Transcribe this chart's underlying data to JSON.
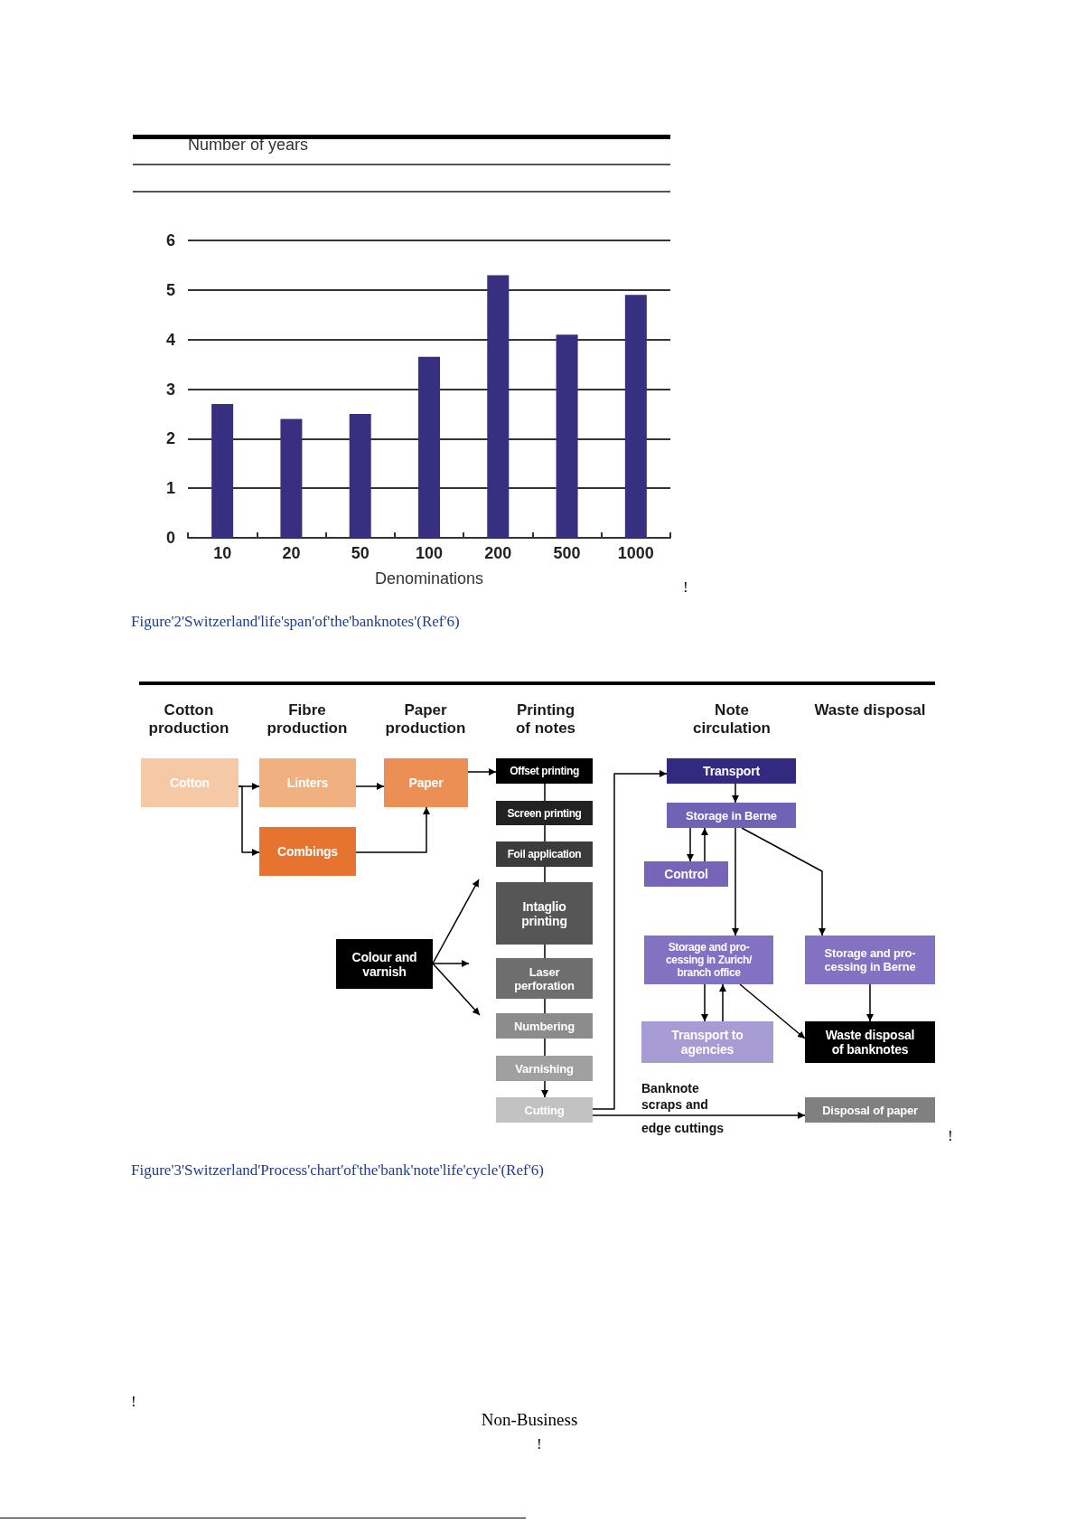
{
  "chart_data": [
    {
      "type": "bar",
      "ylabel": "Number of years",
      "xlabel": "Denominations",
      "categories": [
        "10",
        "20",
        "50",
        "100",
        "200",
        "500",
        "1000"
      ],
      "values": [
        2.7,
        2.4,
        2.5,
        3.65,
        5.3,
        4.1,
        4.9
      ],
      "color": "#372f7f",
      "ylim": [
        0,
        6
      ],
      "yticks": [
        0,
        1,
        2,
        3,
        4,
        5,
        6
      ],
      "grid": "y",
      "annotations": [
        "Figure'2'Switzerland'life'span'of'the'banknotes'(Ref'6)",
        "!"
      ]
    },
    {
      "type": "other",
      "categories": [
        "Cotton\nproduction",
        "Fibre\nproduction",
        "Paper\nproduction",
        "Printing\nof notes",
        "Note\ncirculation",
        "Waste disposal"
      ],
      "annotations": [
        "Cotton",
        "Linters",
        "Paper",
        "Combings",
        "Offset printing",
        "Screen printing",
        "Foil application",
        "Intaglio\nprinting",
        "Laser\nperforation",
        "Numbering",
        "Varnishing",
        "Cutting",
        "Colour and\nvarnish",
        "Transport",
        "Storage in Berne",
        "Control",
        "Storage and pro-\ncessing in Zurich/\nbranch office",
        "Storage and pro-\ncessing in Berne",
        "Transport to\nagencies",
        "Waste disposal\nof banknotes",
        "Disposal of paper",
        "Banknote\nscraps and\nedge cuttings",
        "Figure'3'Switzerland'Process'chart'of'the'bank'note'life'cycle'(Ref'6)",
        "!",
        "!",
        "Non-Business",
        "!"
      ],
      "colors": [
        "#f5c9a6",
        "#f0b080",
        "#eb8f55",
        "#e6742f",
        "#000000",
        "#222222",
        "#3c3c3c",
        "#565656",
        "#6e6e6e",
        "#8c8c8c",
        "#a0a0a0",
        "#c2c2c2",
        "#000000",
        "#312a80",
        "#7262b6",
        "#7664b8",
        "#8371c1",
        "#8371c1",
        "#a79bd3",
        "#000000",
        "#808080"
      ]
    }
  ]
}
